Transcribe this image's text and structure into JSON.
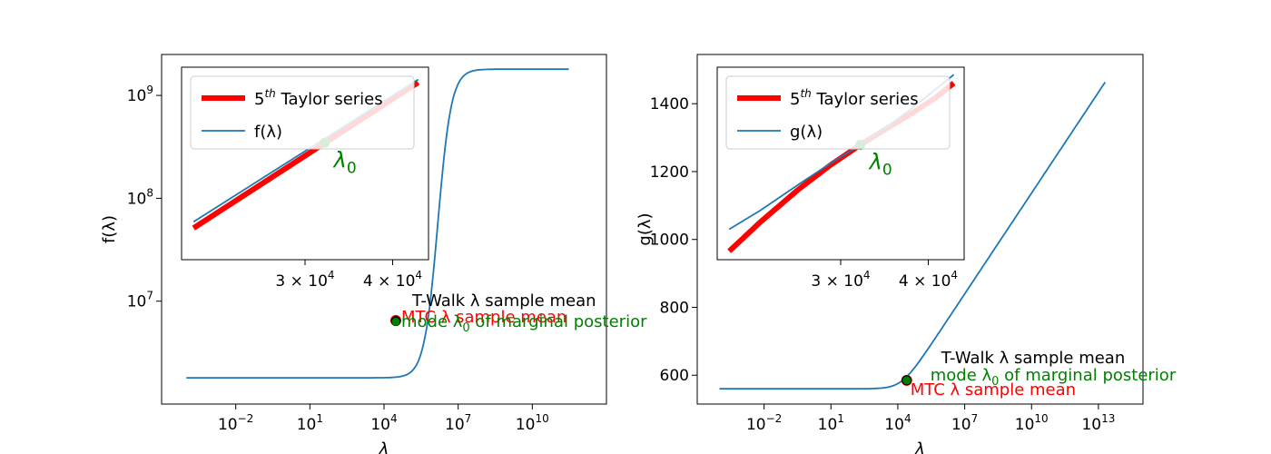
{
  "chart_data": [
    {
      "type": "line",
      "panel": "left",
      "xscale": "log",
      "yscale": "log",
      "xlabel": "λ",
      "ylabel": "f(λ)",
      "xlim": [
        1e-05,
        10000000000000
      ],
      "ylim": [
        1000000,
        2500000000
      ],
      "xticks": [
        {
          "value": 0.01,
          "base": "10",
          "exp": "−2"
        },
        {
          "value": 10,
          "base": "10",
          "exp": "1"
        },
        {
          "value": 10000,
          "base": "10",
          "exp": "4"
        },
        {
          "value": 10000000,
          "base": "10",
          "exp": "7"
        },
        {
          "value": 10000000000,
          "base": "10",
          "exp": "10"
        }
      ],
      "yticks": [
        {
          "value": 10000000,
          "base": "10",
          "exp": "7"
        },
        {
          "value": 100000000,
          "base": "10",
          "exp": "8"
        },
        {
          "value": 1000000000,
          "base": "10",
          "exp": "9"
        }
      ],
      "series": [
        {
          "name": "f(λ)",
          "color": "#1f77b4",
          "curve": {
            "low": 1800000,
            "high": 1800000000,
            "center": 1500000,
            "width": 1.1
          },
          "x_range": [
            0.0001,
            300000000000
          ]
        }
      ],
      "points": [
        {
          "label": "MTC λ sample mean",
          "x": 30000,
          "y": 6500000,
          "color": "#ff0000"
        },
        {
          "label": "T-Walk λ sample mean",
          "x": 30000,
          "y": 6400000,
          "color": "#000000"
        },
        {
          "label": "mode λ0 of marginal posterior",
          "x": 30000,
          "y": 6300000,
          "color": "#008000"
        }
      ],
      "annotations": {
        "twalk": "T-Walk λ sample mean",
        "mtc": "MTC λ sample mean",
        "mode_prefix": "mode λ",
        "mode_sub": "0",
        "mode_suffix": " of marginal posterior"
      },
      "inset": {
        "xscale": "log",
        "yscale": "log",
        "xlim": [
          20000,
          45000
        ],
        "ylim": [
          15000000,
          2200000000
        ],
        "xticks": [
          {
            "value": 30000,
            "label": "3 × 10",
            "exp": "4"
          },
          {
            "value": 40000,
            "label": "4 × 10",
            "exp": "4"
          }
        ],
        "taylor": {
          "name_sup": "th",
          "name_pre": "5",
          "name_post": " Taylor series",
          "color": "#ff0000",
          "x": [
            20800,
            43500
          ],
          "y": [
            34000000,
            1480000000
          ]
        },
        "func": {
          "name": "f(λ)",
          "color": "#1f77b4",
          "x": [
            20800,
            43500
          ],
          "y": [
            40000000,
            1600000000
          ]
        },
        "lambda0": {
          "x": 32000,
          "y": 310000000,
          "color": "#008000",
          "label": "λ",
          "sub": "0"
        }
      }
    },
    {
      "type": "line",
      "panel": "right",
      "xscale": "log",
      "yscale": "linear",
      "xlabel": "λ",
      "ylabel": "g(λ)",
      "xlim": [
        1e-05,
        1000000000000000
      ],
      "ylim": [
        515,
        1545
      ],
      "xticks": [
        {
          "value": 0.01,
          "base": "10",
          "exp": "−2"
        },
        {
          "value": 10,
          "base": "10",
          "exp": "1"
        },
        {
          "value": 10000,
          "base": "10",
          "exp": "4"
        },
        {
          "value": 10000000,
          "base": "10",
          "exp": "7"
        },
        {
          "value": 10000000000,
          "base": "10",
          "exp": "10"
        },
        {
          "value": 10000000000000,
          "base": "10",
          "exp": "13"
        }
      ],
      "yticks": [
        600,
        800,
        1000,
        1200,
        1400
      ],
      "series": [
        {
          "name": "g(λ)",
          "color": "#1f77b4",
          "curve": {
            "base": 560,
            "knee": 15000,
            "slope": 99,
            "sharp": 3
          },
          "x_range": [
            0.0001,
            20000000000000
          ]
        }
      ],
      "points": [
        {
          "label": "MTC λ sample mean",
          "x": 25000,
          "y": 585,
          "color": "#ff0000"
        },
        {
          "label": "T-Walk λ sample mean",
          "x": 25000,
          "y": 585,
          "color": "#000000"
        },
        {
          "label": "mode λ0 of marginal posterior",
          "x": 25000,
          "y": 585,
          "color": "#008000"
        }
      ],
      "annotations": {
        "twalk": "T-Walk λ sample mean",
        "mtc": "MTC λ sample mean",
        "mode_prefix": "mode λ",
        "mode_sub": "0",
        "mode_suffix": " of marginal posterior"
      },
      "inset": {
        "xscale": "log",
        "yscale": "linear",
        "xlim": [
          20000,
          45000
        ],
        "ylim": [
          935,
          1505
        ],
        "xticks": [
          {
            "value": 30000,
            "label": "3 × 10",
            "exp": "4"
          },
          {
            "value": 40000,
            "label": "4 × 10",
            "exp": "4"
          }
        ],
        "taylor": {
          "name_sup": "th",
          "name_pre": "5",
          "name_post": " Taylor series",
          "color": "#ff0000",
          "points": [
            [
              20800,
              960
            ],
            [
              23000,
              1045
            ],
            [
              26000,
              1140
            ],
            [
              29000,
              1215
            ],
            [
              32000,
              1275
            ],
            [
              35000,
              1325
            ],
            [
              38000,
              1370
            ],
            [
              41000,
              1415
            ],
            [
              43500,
              1458
            ]
          ]
        },
        "func": {
          "name": "g(λ)",
          "color": "#1f77b4",
          "points": [
            [
              20800,
              1025
            ],
            [
              23000,
              1080
            ],
            [
              26000,
              1155
            ],
            [
              29000,
              1220
            ],
            [
              32000,
              1275
            ],
            [
              35000,
              1330
            ],
            [
              38000,
              1385
            ],
            [
              41000,
              1440
            ],
            [
              43500,
              1483
            ]
          ]
        },
        "lambda0": {
          "x": 32000,
          "y": 1275,
          "color": "#008000",
          "label": "λ",
          "sub": "0"
        }
      }
    }
  ]
}
